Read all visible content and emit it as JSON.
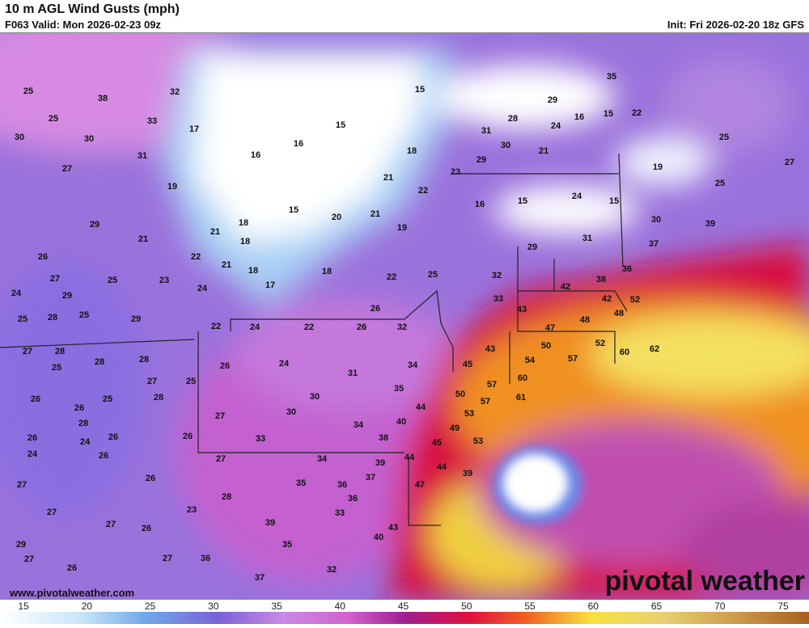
{
  "header": {
    "title": "10 m AGL Wind Gusts (mph)",
    "valid": "F063 Valid: Mon 2026-02-23 09z",
    "init": "Init: Fri 2026-02-20 18z GFS"
  },
  "footer": {
    "url": "www.pivotalweather.com",
    "logo": "pivotal weather"
  },
  "colorbar": {
    "ticks": [
      15,
      20,
      25,
      30,
      35,
      40,
      45,
      50,
      55,
      60,
      65,
      70,
      75
    ]
  },
  "map_labels": [
    25,
    38,
    32,
    25,
    33,
    30,
    30,
    17,
    31,
    27,
    19,
    29,
    21,
    26,
    27,
    24,
    29,
    25,
    23,
    25,
    28,
    25,
    29,
    21,
    22,
    18,
    18,
    21,
    24,
    18,
    17,
    22,
    24,
    22,
    26,
    32,
    15,
    15,
    16,
    16,
    18,
    21,
    22,
    15,
    20,
    21,
    19,
    23,
    18,
    22,
    25,
    26,
    31,
    28,
    29,
    35,
    16,
    15,
    22,
    24,
    30,
    29,
    21,
    19,
    25,
    27,
    25,
    15,
    16,
    24,
    15,
    30,
    39,
    29,
    31,
    37,
    32,
    33,
    36,
    42,
    38,
    42,
    52,
    48,
    43,
    47,
    48,
    27,
    28,
    25,
    28,
    28,
    27,
    25,
    28,
    26,
    24,
    31,
    34,
    45,
    43,
    54,
    50,
    57,
    52,
    60,
    62,
    57,
    60,
    35,
    30,
    50,
    57,
    53,
    61,
    26,
    26,
    25,
    28,
    27,
    30,
    44,
    40,
    34,
    49,
    26,
    24,
    26,
    26,
    33,
    38,
    53,
    24,
    26,
    27,
    34,
    39,
    44,
    45,
    44,
    39,
    27,
    26,
    35,
    37,
    36,
    47,
    27,
    27,
    26,
    23,
    28,
    33,
    36,
    39,
    43,
    40,
    29,
    27,
    26,
    27,
    35,
    36,
    32,
    37
  ]
}
